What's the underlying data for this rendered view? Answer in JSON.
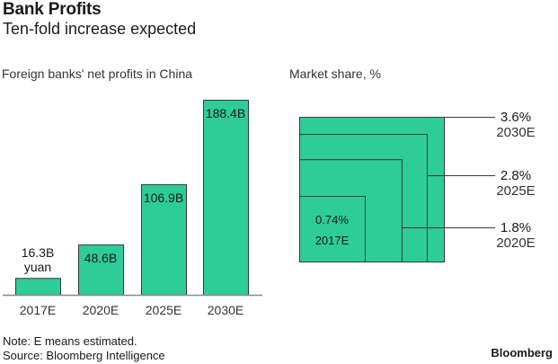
{
  "header": {
    "title": "Bank Profits",
    "subtitle": "Ten-fold increase expected"
  },
  "footer": {
    "note": "Note: E means estimated.",
    "source": "Source: Bloomberg Intelligence",
    "brand": "Bloomberg"
  },
  "colors": {
    "fill": "#2ecc96",
    "stroke": "#3a3a3a",
    "axis": "#888888"
  },
  "chart_data": [
    {
      "type": "bar",
      "title": "Foreign banks' net profits in China",
      "categories": [
        "2017E",
        "2020E",
        "2025E",
        "2030E"
      ],
      "values": [
        16.3,
        48.6,
        106.9,
        188.4
      ],
      "unit": "B yuan",
      "data_labels": [
        "16.3B",
        "48.6B",
        "106.9B",
        "188.4B"
      ],
      "first_label_suffix": "yuan",
      "ylim": [
        0,
        188.4
      ],
      "grid": false
    },
    {
      "type": "area",
      "subtype": "nested-squares",
      "title": "Market share, %",
      "categories": [
        "2017E",
        "2020E",
        "2025E",
        "2030E"
      ],
      "values": [
        0.74,
        1.8,
        2.8,
        3.6
      ],
      "data_labels": [
        "0.74%",
        "1.8%",
        "2.8%",
        "3.6%"
      ]
    }
  ]
}
